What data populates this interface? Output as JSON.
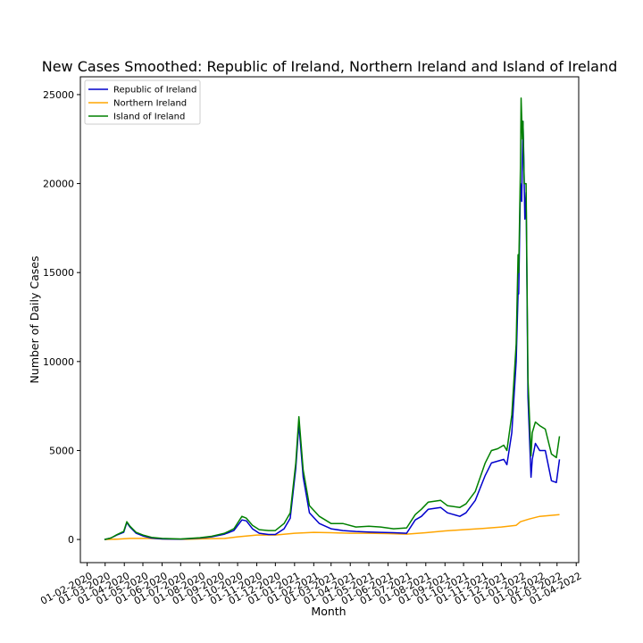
{
  "chart_data": {
    "type": "line",
    "title": "New Cases Smoothed: Republic of Ireland, Northern Ireland and Island of Ireland",
    "xlabel": "Month",
    "ylabel": "Number of Daily Cases",
    "x_ticks": [
      "01-02-2020",
      "01-03-2020",
      "01-04-2020",
      "01-05-2020",
      "01-06-2020",
      "01-07-2020",
      "01-08-2020",
      "01-09-2020",
      "01-10-2020",
      "01-11-2020",
      "01-12-2020",
      "01-01-2021",
      "01-02-2021",
      "01-03-2021",
      "01-04-2021",
      "01-05-2021",
      "01-06-2021",
      "01-07-2021",
      "01-08-2021",
      "01-09-2021",
      "01-10-2021",
      "01-11-2021",
      "01-12-2021",
      "01-01-2022",
      "01-02-2022",
      "01-03-2022",
      "01-04-2022"
    ],
    "y_ticks": [
      0,
      5000,
      10000,
      15000,
      20000,
      25000
    ],
    "xlim": [
      "2020-01-21",
      "2022-04-05"
    ],
    "ylim": [
      -1300,
      26000
    ],
    "grid": false,
    "legend_position": "top-left",
    "series": [
      {
        "name": "Republic of Ireland",
        "color": "#0000cc",
        "points": [
          [
            "2020-02-29",
            0
          ],
          [
            "2020-03-10",
            80
          ],
          [
            "2020-03-20",
            250
          ],
          [
            "2020-03-31",
            400
          ],
          [
            "2020-04-05",
            950
          ],
          [
            "2020-04-10",
            700
          ],
          [
            "2020-04-20",
            350
          ],
          [
            "2020-05-01",
            200
          ],
          [
            "2020-05-15",
            80
          ],
          [
            "2020-06-01",
            30
          ],
          [
            "2020-07-01",
            20
          ],
          [
            "2020-08-01",
            80
          ],
          [
            "2020-08-20",
            150
          ],
          [
            "2020-09-10",
            300
          ],
          [
            "2020-09-25",
            500
          ],
          [
            "2020-10-08",
            1100
          ],
          [
            "2020-10-15",
            1050
          ],
          [
            "2020-10-25",
            600
          ],
          [
            "2020-11-05",
            350
          ],
          [
            "2020-11-20",
            280
          ],
          [
            "2020-12-01",
            280
          ],
          [
            "2020-12-15",
            600
          ],
          [
            "2020-12-25",
            1200
          ],
          [
            "2021-01-03",
            4000
          ],
          [
            "2021-01-08",
            6500
          ],
          [
            "2021-01-15",
            3500
          ],
          [
            "2021-01-25",
            1500
          ],
          [
            "2021-02-10",
            900
          ],
          [
            "2021-03-01",
            600
          ],
          [
            "2021-03-20",
            500
          ],
          [
            "2021-04-10",
            450
          ],
          [
            "2021-05-01",
            420
          ],
          [
            "2021-05-20",
            400
          ],
          [
            "2021-06-10",
            380
          ],
          [
            "2021-07-01",
            350
          ],
          [
            "2021-07-15",
            1100
          ],
          [
            "2021-07-25",
            1300
          ],
          [
            "2021-08-05",
            1700
          ],
          [
            "2021-08-25",
            1800
          ],
          [
            "2021-09-05",
            1500
          ],
          [
            "2021-09-25",
            1300
          ],
          [
            "2021-10-05",
            1500
          ],
          [
            "2021-10-20",
            2200
          ],
          [
            "2021-11-05",
            3600
          ],
          [
            "2021-11-15",
            4300
          ],
          [
            "2021-11-25",
            4400
          ],
          [
            "2021-12-05",
            4500
          ],
          [
            "2021-12-10",
            4200
          ],
          [
            "2021-12-18",
            6000
          ],
          [
            "2021-12-25",
            10000
          ],
          [
            "2021-12-28",
            13800
          ],
          [
            "2021-12-29",
            13800
          ],
          [
            "2022-01-01",
            20000
          ],
          [
            "2022-01-03",
            19000
          ],
          [
            "2022-01-05",
            23500
          ],
          [
            "2022-01-06",
            22000
          ],
          [
            "2022-01-08",
            18000
          ],
          [
            "2022-01-10",
            19500
          ],
          [
            "2022-01-13",
            8000
          ],
          [
            "2022-01-18",
            3500
          ],
          [
            "2022-01-20",
            4500
          ],
          [
            "2022-01-25",
            5400
          ],
          [
            "2022-02-01",
            5000
          ],
          [
            "2022-02-10",
            5000
          ],
          [
            "2022-02-20",
            3300
          ],
          [
            "2022-02-28",
            3200
          ],
          [
            "2022-03-05",
            4500
          ]
        ]
      },
      {
        "name": "Northern Ireland",
        "color": "#ffa500",
        "points": [
          [
            "2020-02-29",
            0
          ],
          [
            "2020-03-20",
            20
          ],
          [
            "2020-04-10",
            60
          ],
          [
            "2020-05-10",
            60
          ],
          [
            "2020-06-10",
            20
          ],
          [
            "2020-07-10",
            10
          ],
          [
            "2020-08-10",
            40
          ],
          [
            "2020-09-10",
            60
          ],
          [
            "2020-10-01",
            150
          ],
          [
            "2020-11-01",
            250
          ],
          [
            "2020-12-01",
            250
          ],
          [
            "2021-01-01",
            350
          ],
          [
            "2021-02-01",
            400
          ],
          [
            "2021-03-01",
            380
          ],
          [
            "2021-04-01",
            350
          ],
          [
            "2021-05-01",
            350
          ],
          [
            "2021-06-01",
            330
          ],
          [
            "2021-07-01",
            300
          ],
          [
            "2021-08-01",
            380
          ],
          [
            "2021-09-01",
            480
          ],
          [
            "2021-10-01",
            550
          ],
          [
            "2021-11-01",
            620
          ],
          [
            "2021-12-01",
            700
          ],
          [
            "2021-12-25",
            800
          ],
          [
            "2022-01-01",
            1000
          ],
          [
            "2022-01-15",
            1150
          ],
          [
            "2022-02-01",
            1300
          ],
          [
            "2022-03-05",
            1400
          ]
        ]
      },
      {
        "name": "Island of Ireland",
        "color": "#008000",
        "points": [
          [
            "2020-02-29",
            0
          ],
          [
            "2020-03-10",
            80
          ],
          [
            "2020-03-20",
            270
          ],
          [
            "2020-03-31",
            450
          ],
          [
            "2020-04-05",
            1000
          ],
          [
            "2020-04-10",
            750
          ],
          [
            "2020-04-20",
            400
          ],
          [
            "2020-05-01",
            250
          ],
          [
            "2020-05-15",
            120
          ],
          [
            "2020-06-01",
            60
          ],
          [
            "2020-07-01",
            30
          ],
          [
            "2020-08-01",
            100
          ],
          [
            "2020-08-20",
            180
          ],
          [
            "2020-09-10",
            350
          ],
          [
            "2020-09-25",
            600
          ],
          [
            "2020-10-08",
            1300
          ],
          [
            "2020-10-15",
            1200
          ],
          [
            "2020-10-25",
            800
          ],
          [
            "2020-11-05",
            550
          ],
          [
            "2020-11-20",
            500
          ],
          [
            "2020-12-01",
            500
          ],
          [
            "2020-12-15",
            900
          ],
          [
            "2020-12-25",
            1500
          ],
          [
            "2021-01-03",
            4300
          ],
          [
            "2021-01-08",
            6900
          ],
          [
            "2021-01-15",
            3900
          ],
          [
            "2021-01-25",
            1900
          ],
          [
            "2021-02-10",
            1300
          ],
          [
            "2021-03-01",
            900
          ],
          [
            "2021-03-20",
            900
          ],
          [
            "2021-04-10",
            700
          ],
          [
            "2021-05-01",
            750
          ],
          [
            "2021-05-20",
            700
          ],
          [
            "2021-06-10",
            600
          ],
          [
            "2021-07-01",
            650
          ],
          [
            "2021-07-15",
            1400
          ],
          [
            "2021-07-25",
            1700
          ],
          [
            "2021-08-05",
            2100
          ],
          [
            "2021-08-25",
            2200
          ],
          [
            "2021-09-05",
            1900
          ],
          [
            "2021-09-25",
            1800
          ],
          [
            "2021-10-05",
            2000
          ],
          [
            "2021-10-20",
            2700
          ],
          [
            "2021-11-05",
            4300
          ],
          [
            "2021-11-15",
            5000
          ],
          [
            "2021-11-25",
            5100
          ],
          [
            "2021-12-05",
            5300
          ],
          [
            "2021-12-10",
            5000
          ],
          [
            "2021-12-18",
            7000
          ],
          [
            "2021-12-25",
            11000
          ],
          [
            "2021-12-28",
            16000
          ],
          [
            "2021-12-29",
            15000
          ],
          [
            "2022-01-01",
            21000
          ],
          [
            "2022-01-02",
            24800
          ],
          [
            "2022-01-04",
            22500
          ],
          [
            "2022-01-05",
            23500
          ],
          [
            "2022-01-07",
            20000
          ],
          [
            "2022-01-10",
            20000
          ],
          [
            "2022-01-13",
            9000
          ],
          [
            "2022-01-18",
            4700
          ],
          [
            "2022-01-20",
            6000
          ],
          [
            "2022-01-25",
            6600
          ],
          [
            "2022-02-01",
            6400
          ],
          [
            "2022-02-10",
            6200
          ],
          [
            "2022-02-20",
            4800
          ],
          [
            "2022-02-28",
            4600
          ],
          [
            "2022-03-05",
            5800
          ]
        ]
      }
    ]
  }
}
